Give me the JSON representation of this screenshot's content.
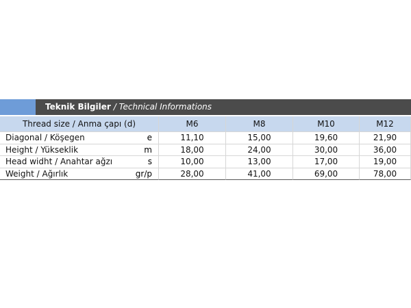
{
  "header": {
    "title": "Teknik Bilgiler",
    "subtitle": "/ Technical Informations"
  },
  "table": {
    "columns": [
      "Thread size / Anma çapı (d)",
      "M6",
      "M8",
      "M10",
      "M12"
    ],
    "rows": [
      [
        "Diagonal / Köşegen",
        "e",
        "11,10",
        "15,00",
        "19,60",
        "21,90"
      ],
      [
        "Height / Yükseklik",
        "m",
        "18,00",
        "24,00",
        "30,00",
        "36,00"
      ],
      [
        "Head widht / Anahtar ağzı",
        "s",
        "10,00",
        "13,00",
        "17,00",
        "19,00"
      ],
      [
        "Weight / Ağırlık",
        "gr/p",
        "28,00",
        "41,00",
        "69,00",
        "78,00"
      ]
    ]
  }
}
